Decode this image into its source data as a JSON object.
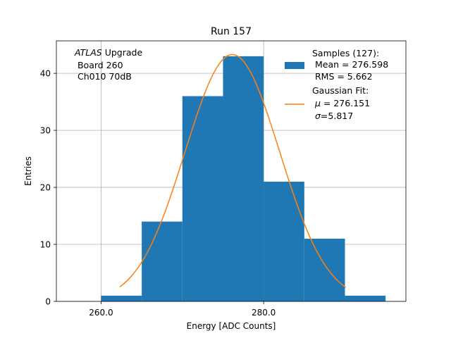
{
  "chart_data": {
    "type": "bar",
    "title": "Run 157",
    "xlabel": "Energy [ADC Counts]",
    "ylabel": "Entries",
    "xlim": [
      254.5,
      297.5
    ],
    "ylim": [
      0,
      45.7
    ],
    "grid": true,
    "legend_position": "top-right",
    "bin_edges": [
      260,
      265,
      270,
      275,
      280,
      285,
      290,
      295
    ],
    "values": [
      1,
      14,
      36,
      43,
      21,
      11,
      1
    ],
    "xticks": [
      260.0,
      280.0
    ],
    "xtick_labels": [
      "260.0",
      "280.0"
    ],
    "yticks": [
      0,
      10,
      20,
      30,
      40
    ],
    "ytick_labels": [
      "0",
      "10",
      "20",
      "30",
      "40"
    ],
    "histogram_color": "#1f77b4",
    "fit_color": "#ff7f0e",
    "fit": {
      "amplitude": 43.3,
      "mu": 276.151,
      "sigma": 5.817,
      "x_range": [
        262.3,
        290.1
      ]
    },
    "annotation": {
      "experiment": "ATLAS",
      "line1_rest": " Upgrade",
      "line2": " Board 260",
      "line3": " Ch010 70dB"
    },
    "legend": {
      "samples": {
        "line1": "Samples (127):",
        "line2": " Mean = 276.598",
        "line3": " RMS = 5.662"
      },
      "gaussian": {
        "line1": "Gaussian Fit:",
        "mu_symbol": "μ",
        "mu_value": " = 276.151",
        "sigma_symbol": "σ",
        "sigma_value": "=5.817"
      }
    }
  }
}
